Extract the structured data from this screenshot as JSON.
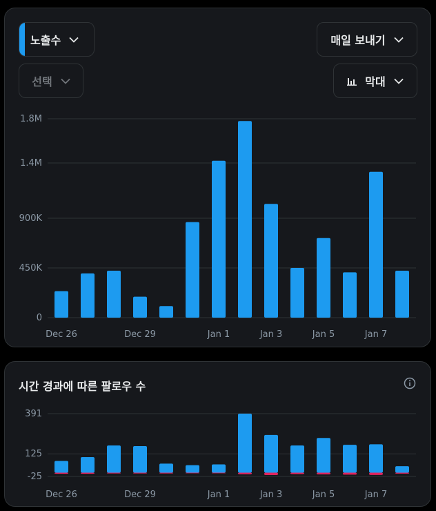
{
  "top_panel": {
    "metric_label": "노출수",
    "export_label": "매일 보내기",
    "select_label": "선택",
    "chart_type_label": "막대"
  },
  "bottom_panel": {
    "title": "시간 경과에 따른 팔로우 수"
  },
  "colors": {
    "bar": "#1d9bf0",
    "negative": "#e0245e",
    "grid": "#2f3336",
    "axis_text": "#8b98a5"
  },
  "chart_data": [
    {
      "type": "bar",
      "x_tick_labels": [
        "Dec 26",
        "Dec 29",
        "Jan 1",
        "Jan 3",
        "Jan 5",
        "Jan 7"
      ],
      "x_tick_index": [
        0,
        3,
        6,
        8,
        10,
        12
      ],
      "y_ticks": [
        0,
        450000,
        900000,
        1400000,
        1800000
      ],
      "y_tick_labels": [
        "0",
        "450K",
        "900K",
        "1.4M",
        "1.8M"
      ],
      "ylim": [
        0,
        1800000
      ],
      "grid": true,
      "values": [
        240000,
        400000,
        425000,
        190000,
        105000,
        865000,
        1420000,
        1780000,
        1030000,
        450000,
        720000,
        410000,
        1320000,
        425000
      ]
    },
    {
      "type": "bar",
      "x_tick_labels": [
        "Dec 26",
        "Dec 29",
        "Jan 1",
        "Jan 3",
        "Jan 5",
        "Jan 7"
      ],
      "x_tick_index": [
        0,
        3,
        6,
        8,
        10,
        12
      ],
      "y_ticks": [
        -25,
        125,
        391
      ],
      "y_tick_labels": [
        "-25",
        "125",
        "391"
      ],
      "ylim": [
        -25,
        391
      ],
      "grid": true,
      "series": [
        {
          "values": [
            78,
            103,
            180,
            176,
            60,
            50,
            55,
            391,
            250,
            180,
            230,
            185,
            188,
            43
          ]
        },
        {
          "values": [
            -7,
            -7,
            -5,
            -5,
            -5,
            -4,
            -4,
            -10,
            -16,
            -9,
            -11,
            -13,
            -15,
            -6
          ]
        }
      ]
    }
  ]
}
